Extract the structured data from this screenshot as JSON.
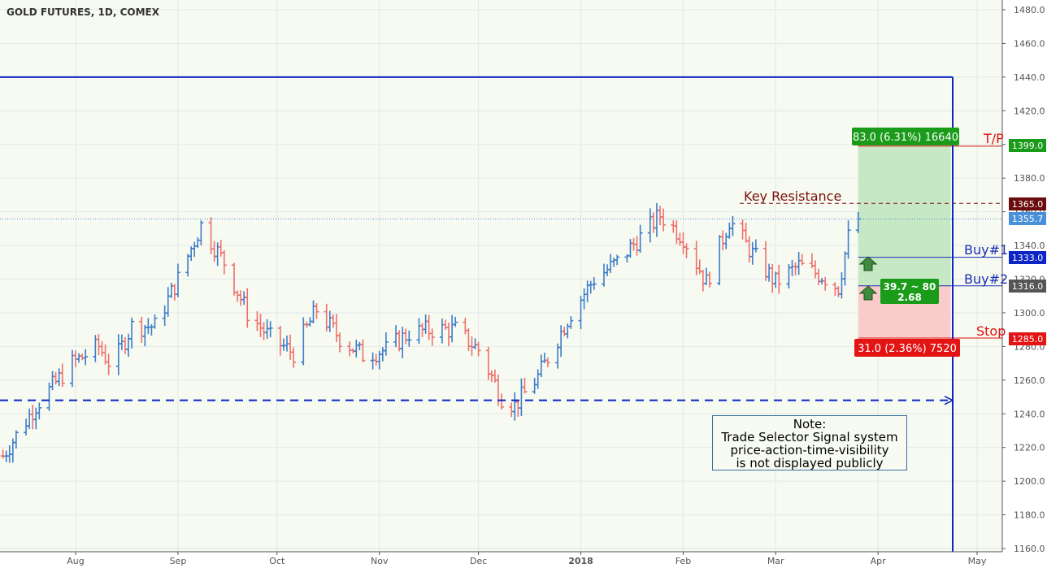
{
  "chart_data": {
    "type": "ohlc",
    "title": "GOLD FUTURES, 1D, COMEX",
    "ylim": [
      1160,
      1490
    ],
    "y_ticks": [
      1160,
      1180,
      1200,
      1220,
      1240,
      1260,
      1280,
      1300,
      1320,
      1340,
      1360,
      1380,
      1400,
      1420,
      1440,
      1460,
      1480
    ],
    "y_tick_labels": [
      "1160.0",
      "1180.0",
      "1200.0",
      "1220.0",
      "1240.0",
      "1260.0",
      "1280.0",
      "1300.0",
      "1320.0",
      "1340.0",
      "1360.0",
      "1380.0",
      "1400.0",
      "1420.0",
      "1440.0",
      "1460.0",
      "1480.0"
    ],
    "x_start_date": "2017-07-10",
    "x_end_date": "2018-05-10",
    "x_tick_dates": [
      "2017-08-01",
      "2017-09-01",
      "2017-10-01",
      "2017-11-01",
      "2017-12-01",
      "2018-01-01",
      "2018-02-01",
      "2018-03-01",
      "2018-04-01",
      "2018-05-01"
    ],
    "x_tick_labels": [
      "Aug",
      "Sep",
      "Oct",
      "Nov",
      "Dec",
      "2018",
      "Feb",
      "Mar",
      "Apr",
      "May"
    ],
    "grid": true,
    "colors": {
      "up": "#3d7cc9",
      "down": "#ef6f6c",
      "blue_line": "#0d24c7",
      "stop": "#e01010",
      "tp": "#e01010",
      "target_badge": "#1a9b1a",
      "resistance": "#7a0e0e",
      "current": "#4a90d9"
    },
    "series_anchor_prices": [
      [
        "2017-07-10",
        1215
      ],
      [
        "2017-07-20",
        1245
      ],
      [
        "2017-07-31",
        1270
      ],
      [
        "2017-08-08",
        1280
      ],
      [
        "2017-08-12",
        1268
      ],
      [
        "2017-08-18",
        1292
      ],
      [
        "2017-08-25",
        1292
      ],
      [
        "2017-09-01",
        1320
      ],
      [
        "2017-09-08",
        1352
      ],
      [
        "2017-09-15",
        1330
      ],
      [
        "2017-09-22",
        1300
      ],
      [
        "2017-09-29",
        1285
      ],
      [
        "2017-10-06",
        1276
      ],
      [
        "2017-10-13",
        1302
      ],
      [
        "2017-10-20",
        1285
      ],
      [
        "2017-10-27",
        1275
      ],
      [
        "2017-11-03",
        1278
      ],
      [
        "2017-11-10",
        1288
      ],
      [
        "2017-11-17",
        1290
      ],
      [
        "2017-11-24",
        1290
      ],
      [
        "2017-12-01",
        1278
      ],
      [
        "2017-12-08",
        1250
      ],
      [
        "2017-12-12",
        1245
      ],
      [
        "2017-12-19",
        1262
      ],
      [
        "2017-12-29",
        1300
      ],
      [
        "2018-01-05",
        1320
      ],
      [
        "2018-01-12",
        1330
      ],
      [
        "2018-01-19",
        1345
      ],
      [
        "2018-01-25",
        1358
      ],
      [
        "2018-02-01",
        1345
      ],
      [
        "2018-02-08",
        1318
      ],
      [
        "2018-02-15",
        1355
      ],
      [
        "2018-02-22",
        1335
      ],
      [
        "2018-03-01",
        1318
      ],
      [
        "2018-03-08",
        1328
      ],
      [
        "2018-03-15",
        1322
      ],
      [
        "2018-03-20",
        1315
      ],
      [
        "2018-03-23",
        1345
      ],
      [
        "2018-03-26",
        1355.7
      ]
    ],
    "levels": [
      {
        "name": "T/P",
        "price": 1399.0,
        "label": "1399.0"
      },
      {
        "name": "Key Resistance",
        "price": 1365.0,
        "label": "1365.0"
      },
      {
        "name": "current",
        "price": 1355.7,
        "label": "1355.7"
      },
      {
        "name": "Buy#1",
        "price": 1333.0,
        "label": "1333.0"
      },
      {
        "name": "Buy#2",
        "price": 1316.0,
        "label": "1316.0"
      },
      {
        "name": "Stop",
        "price": 1285.0,
        "label": "1285.0"
      }
    ],
    "support_line": {
      "price": 1248
    },
    "box_line": {
      "price": 1440
    },
    "position": {
      "start_date": "2018-03-26",
      "end_date": "2018-04-23",
      "entry": 1316.0,
      "target": 1399.0,
      "stop": 1285.0,
      "target_label": "83.0 (6.31%) 16640",
      "stop_label": "31.0 (2.36%) 7520",
      "ratio_label_1": "39.7 ~ 80",
      "ratio_label_2": "2.68"
    }
  },
  "labels": {
    "title": "GOLD FUTURES, 1D, COMEX",
    "tp": "T/P",
    "key_resistance": "Key Resistance",
    "buy1": "Buy#1",
    "buy2": "Buy#2",
    "stop": "Stop",
    "target_badge": "83.0 (6.31%) 16640",
    "stop_badge": "31.0 (2.36%) 7520",
    "ratio_1": "39.7 ~ 80",
    "ratio_2": "2.68",
    "price_tp": "1399.0",
    "price_res": "1365.0",
    "price_cur": "1355.7",
    "price_buy1": "1333.0",
    "price_buy2": "1316.0",
    "price_stop": "1285.0"
  },
  "note": {
    "line1": "Note:",
    "line2": "Trade Selector Signal system",
    "line3": "price-action-time-visibility",
    "line4": "is not displayed publicly"
  }
}
